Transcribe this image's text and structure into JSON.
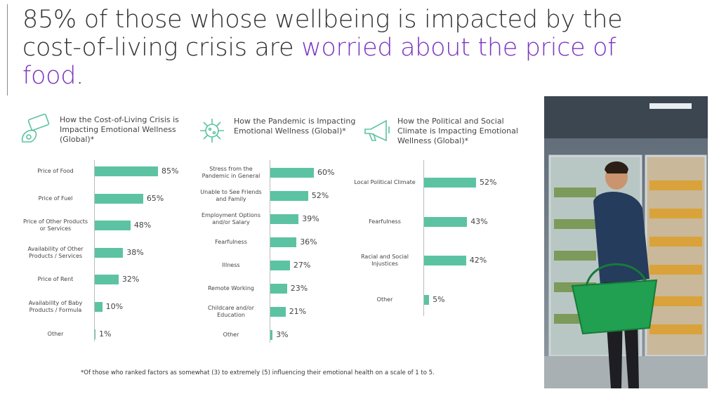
{
  "headline": {
    "text": "85% of those whose wellbeing is impacted by the cost-of-living crisis are",
    "highlight": "worried about the price of food",
    "end": "."
  },
  "footnote": "*Of those who ranked factors as somewhat (3) to extremely (5) influencing their emotional health on a scale of 1 to 5.",
  "chart_data": [
    {
      "type": "bar",
      "orientation": "horizontal",
      "title": "How the Cost-of-Living Crisis is Impacting Emotional Wellness (Global)*",
      "color": "#5cc3a2",
      "categories": [
        "Price of Food",
        "Price of Fuel",
        "Price of Other Products or Services",
        "Availability of Other Products / Services",
        "Price of Rent",
        "Availability of Baby Products / Formula",
        "Other"
      ],
      "values": [
        85,
        65,
        48,
        38,
        32,
        10,
        1
      ],
      "value_labels": [
        "85%",
        "65%",
        "48%",
        "38%",
        "32%",
        "10%",
        "1%"
      ]
    },
    {
      "type": "bar",
      "orientation": "horizontal",
      "title": "How the Pandemic is Impacting Emotional Wellness (Global)*",
      "color": "#5cc3a2",
      "categories": [
        "Stress from the Pandemic in General",
        "Unable to See Friends and Family",
        "Employment Options and/or Salary",
        "Fearfulness",
        "Illness",
        "Remote Working",
        "Childcare and/or Education",
        "Other"
      ],
      "values": [
        60,
        52,
        39,
        36,
        27,
        23,
        21,
        3
      ],
      "value_labels": [
        "60%",
        "52%",
        "39%",
        "36%",
        "27%",
        "23%",
        "21%",
        "3%"
      ]
    },
    {
      "type": "bar",
      "orientation": "horizontal",
      "title": "How the Political and Social Climate is Impacting Emotional Wellness (Global)*",
      "color": "#5cc3a2",
      "categories": [
        "Local Political Climate",
        "Fearfulness",
        "Racial and Social Injustices",
        "Other"
      ],
      "values": [
        52,
        43,
        42,
        5
      ],
      "value_labels": [
        "52%",
        "43%",
        "42%",
        "5%"
      ]
    }
  ]
}
